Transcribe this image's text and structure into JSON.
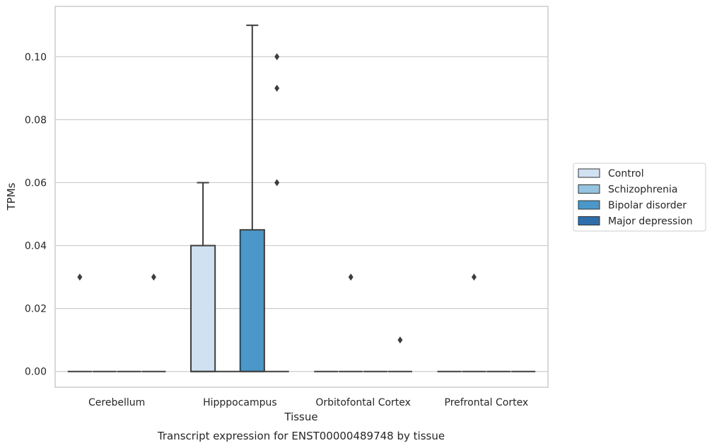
{
  "chart_data": {
    "type": "box",
    "caption": "Transcript expression for ENST00000489748 by tissue",
    "xlabel": "Tissue",
    "ylabel": "TPMs",
    "ylim": [
      -0.005,
      0.116
    ],
    "y_ticks": [
      0.0,
      0.02,
      0.04,
      0.06,
      0.08,
      0.1
    ],
    "y_tick_labels": [
      "0.00",
      "0.02",
      "0.04",
      "0.06",
      "0.08",
      "0.10"
    ],
    "grid": "horizontal",
    "legend_position": "right",
    "categories": [
      "Cerebellum",
      "Hipppocampus",
      "Orbitofontal Cortex",
      "Prefrontal Cortex"
    ],
    "series": [
      {
        "name": "Control",
        "color": "#d0e1f2",
        "boxes": [
          {
            "q1": 0,
            "median": 0,
            "q3": 0,
            "whisker_low": 0,
            "whisker_high": 0,
            "outliers": [
              0.03
            ]
          },
          {
            "q1": 0,
            "median": 0,
            "q3": 0.04,
            "whisker_low": 0,
            "whisker_high": 0.06,
            "outliers": []
          },
          {
            "q1": 0,
            "median": 0,
            "q3": 0,
            "whisker_low": 0,
            "whisker_high": 0,
            "outliers": []
          },
          {
            "q1": 0,
            "median": 0,
            "q3": 0,
            "whisker_low": 0,
            "whisker_high": 0,
            "outliers": []
          }
        ]
      },
      {
        "name": "Schizophrenia",
        "color": "#94c4df",
        "boxes": [
          {
            "q1": 0,
            "median": 0,
            "q3": 0,
            "whisker_low": 0,
            "whisker_high": 0,
            "outliers": []
          },
          {
            "q1": 0,
            "median": 0,
            "q3": 0,
            "whisker_low": 0,
            "whisker_high": 0,
            "outliers": []
          },
          {
            "q1": 0,
            "median": 0,
            "q3": 0,
            "whisker_low": 0,
            "whisker_high": 0,
            "outliers": [
              0.03
            ]
          },
          {
            "q1": 0,
            "median": 0,
            "q3": 0,
            "whisker_low": 0,
            "whisker_high": 0,
            "outliers": [
              0.03
            ]
          }
        ]
      },
      {
        "name": "Bipolar disorder",
        "color": "#4a98c9",
        "boxes": [
          {
            "q1": 0,
            "median": 0,
            "q3": 0,
            "whisker_low": 0,
            "whisker_high": 0,
            "outliers": []
          },
          {
            "q1": 0,
            "median": 0,
            "q3": 0.045,
            "whisker_low": 0,
            "whisker_high": 0.11,
            "outliers": []
          },
          {
            "q1": 0,
            "median": 0,
            "q3": 0,
            "whisker_low": 0,
            "whisker_high": 0,
            "outliers": []
          },
          {
            "q1": 0,
            "median": 0,
            "q3": 0,
            "whisker_low": 0,
            "whisker_high": 0,
            "outliers": []
          }
        ]
      },
      {
        "name": "Major depression",
        "color": "#2e6eab",
        "boxes": [
          {
            "q1": 0,
            "median": 0,
            "q3": 0,
            "whisker_low": 0,
            "whisker_high": 0,
            "outliers": [
              0.03
            ]
          },
          {
            "q1": 0,
            "median": 0,
            "q3": 0,
            "whisker_low": 0,
            "whisker_high": 0,
            "outliers": [
              0.06,
              0.09,
              0.1
            ]
          },
          {
            "q1": 0,
            "median": 0,
            "q3": 0,
            "whisker_low": 0,
            "whisker_high": 0,
            "outliers": [
              0.01
            ]
          },
          {
            "q1": 0,
            "median": 0,
            "q3": 0,
            "whisker_low": 0,
            "whisker_high": 0,
            "outliers": []
          }
        ]
      }
    ]
  },
  "colors": {
    "grid": "#cccccc",
    "frame": "#cccccc",
    "box_edge": "#3d3d3d",
    "outlier": "#3d3d3d"
  }
}
